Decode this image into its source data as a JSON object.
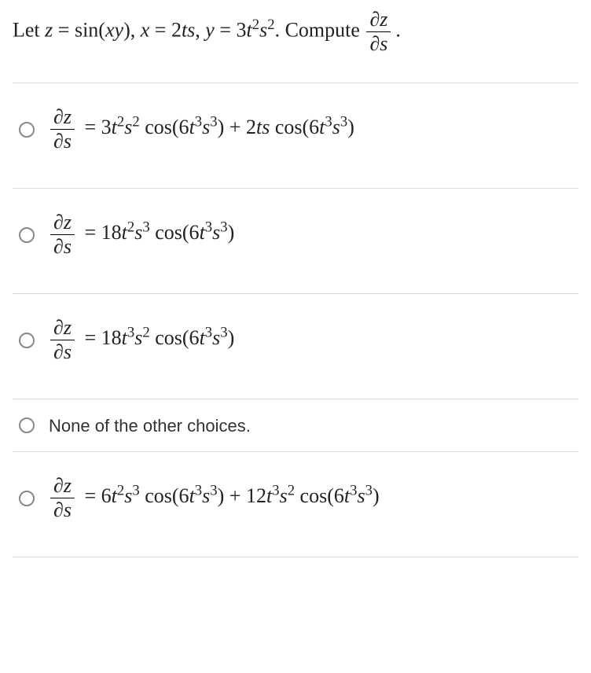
{
  "question": {
    "prefix": "Let ",
    "z_var": "z",
    "eq1": " = ",
    "z_expr_fn": "sin",
    "z_expr_arg": "xy",
    "sep1": ", ",
    "x_var": "x",
    "x_expr": " = 2",
    "x_expr_vars": "ts",
    "sep2": ", ",
    "y_var": "y",
    "y_expr_coef": " = 3",
    "y_t": "t",
    "y_t_exp": "2",
    "y_s": "s",
    "y_s_exp": "2",
    "compute_text": ". Compute ",
    "frac_num": "∂z",
    "frac_den": "∂s",
    "period": "."
  },
  "options": [
    {
      "type": "math",
      "lhs_num": "∂z",
      "lhs_den": "∂s",
      "rhs_html": " = 3<span class='mi'>t</span><sup>2</sup><span class='mi'>s</span><sup>2</sup> <span class='fn'>cos</span>(6<span class='mi'>t</span><sup>3</sup><span class='mi'>s</span><sup>3</sup>) + 2<span class='mi'>ts</span> <span class='fn'>cos</span>(6<span class='mi'>t</span><sup>3</sup><span class='mi'>s</span><sup>3</sup>)"
    },
    {
      "type": "math",
      "lhs_num": "∂z",
      "lhs_den": "∂s",
      "rhs_html": " = 18<span class='mi'>t</span><sup>2</sup><span class='mi'>s</span><sup>3</sup> <span class='fn'>cos</span>(6<span class='mi'>t</span><sup>3</sup><span class='mi'>s</span><sup>3</sup>)"
    },
    {
      "type": "math",
      "lhs_num": "∂z",
      "lhs_den": "∂s",
      "rhs_html": " = 18<span class='mi'>t</span><sup>3</sup><span class='mi'>s</span><sup>2</sup> <span class='fn'>cos</span>(6<span class='mi'>t</span><sup>3</sup><span class='mi'>s</span><sup>3</sup>)"
    },
    {
      "type": "text",
      "text": "None of the other choices."
    },
    {
      "type": "math",
      "lhs_num": "∂z",
      "lhs_den": "∂s",
      "rhs_html": " = 6<span class='mi'>t</span><sup>2</sup><span class='mi'>s</span><sup>3</sup> <span class='fn'>cos</span>(6<span class='mi'>t</span><sup>3</sup><span class='mi'>s</span><sup>3</sup>) + 12<span class='mi'>t</span><sup>3</sup><span class='mi'>s</span><sup>2</sup> <span class='fn'>cos</span>(6<span class='mi'>t</span><sup>3</sup><span class='mi'>s</span><sup>3</sup>)"
    }
  ],
  "styling": {
    "body_width": 752,
    "body_height": 856,
    "background_color": "#ffffff",
    "text_color": "#222222",
    "divider_color": "#dddddd",
    "radio_border_color": "#888888",
    "question_fontsize": 26,
    "option_fontsize": 26,
    "none_text_fontsize": 22,
    "font_family_math": "Times New Roman, serif",
    "font_family_text": "Segoe UI, Arial, sans-serif"
  }
}
